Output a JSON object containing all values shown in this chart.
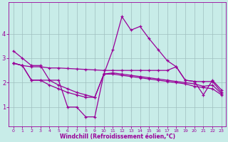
{
  "xlabel": "Windchill (Refroidissement éolien,°C)",
  "bg_color": "#c8ece8",
  "line_color": "#990099",
  "grid_color": "#9fbfbf",
  "xlim": [
    -0.5,
    23.5
  ],
  "ylim": [
    0.2,
    5.3
  ],
  "yticks": [
    1,
    2,
    3,
    4
  ],
  "xticks": [
    0,
    1,
    2,
    3,
    4,
    5,
    6,
    7,
    8,
    9,
    10,
    11,
    12,
    13,
    14,
    15,
    16,
    17,
    18,
    19,
    20,
    21,
    22,
    23
  ],
  "line1_x": [
    0,
    1,
    2,
    3,
    4,
    5,
    6,
    7,
    8,
    9,
    10,
    11,
    12,
    13,
    14,
    15,
    16,
    17,
    18,
    19,
    20,
    21,
    22,
    23
  ],
  "line1_y": [
    3.3,
    3.0,
    2.7,
    2.7,
    2.1,
    2.1,
    1.0,
    1.0,
    0.6,
    0.6,
    2.35,
    3.35,
    4.7,
    4.15,
    4.3,
    3.8,
    3.35,
    2.9,
    2.65,
    2.1,
    2.05,
    1.5,
    2.1,
    1.7
  ],
  "line2_x": [
    0,
    1,
    2,
    3,
    4,
    5,
    6,
    7,
    8,
    9,
    10,
    11,
    12,
    13,
    14,
    15,
    16,
    17,
    18,
    19,
    20,
    21,
    22,
    23
  ],
  "line2_y": [
    2.8,
    2.7,
    2.65,
    2.65,
    2.6,
    2.6,
    2.58,
    2.56,
    2.54,
    2.52,
    2.5,
    2.5,
    2.5,
    2.5,
    2.5,
    2.5,
    2.5,
    2.5,
    2.65,
    2.1,
    2.05,
    2.05,
    2.05,
    1.6
  ],
  "line3_x": [
    0,
    1,
    2,
    3,
    4,
    5,
    6,
    7,
    8,
    9,
    10,
    11,
    12,
    13,
    14,
    15,
    16,
    17,
    18,
    19,
    20,
    21,
    22,
    23
  ],
  "line3_y": [
    2.8,
    2.7,
    2.1,
    2.1,
    2.1,
    1.9,
    1.75,
    1.6,
    1.5,
    1.4,
    2.35,
    2.4,
    2.35,
    2.3,
    2.25,
    2.2,
    2.15,
    2.1,
    2.05,
    2.0,
    1.95,
    1.85,
    1.9,
    1.55
  ],
  "line4_x": [
    0,
    1,
    2,
    3,
    4,
    5,
    6,
    7,
    8,
    9,
    10,
    11,
    12,
    13,
    14,
    15,
    16,
    17,
    18,
    19,
    20,
    21,
    22,
    23
  ],
  "line4_y": [
    2.8,
    2.7,
    2.1,
    2.1,
    1.9,
    1.75,
    1.6,
    1.5,
    1.4,
    1.4,
    2.35,
    2.35,
    2.3,
    2.25,
    2.2,
    2.15,
    2.1,
    2.05,
    2.0,
    1.95,
    1.85,
    1.8,
    1.75,
    1.5
  ]
}
